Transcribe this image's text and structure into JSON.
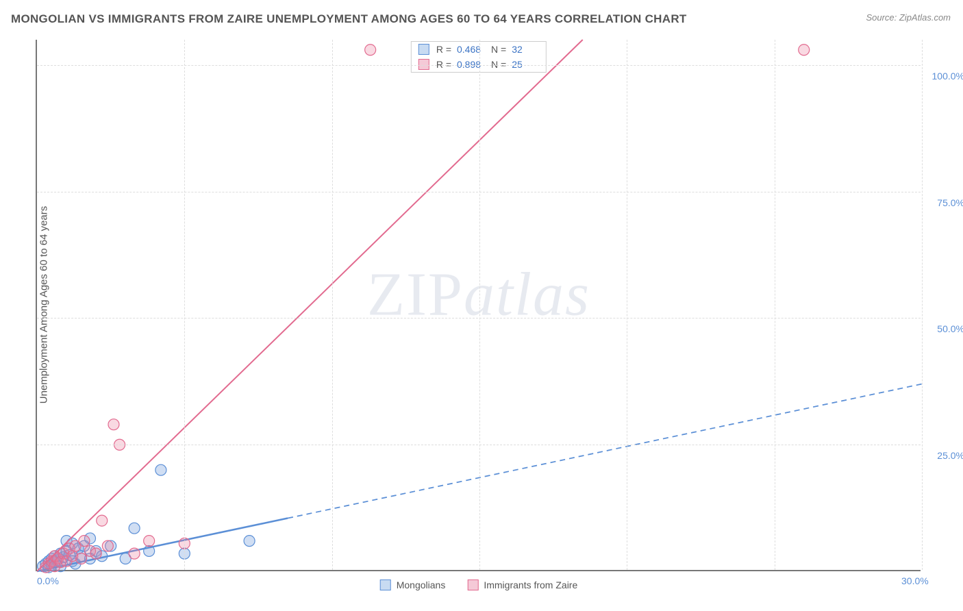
{
  "title": "MONGOLIAN VS IMMIGRANTS FROM ZAIRE UNEMPLOYMENT AMONG AGES 60 TO 64 YEARS CORRELATION CHART",
  "source": "Source: ZipAtlas.com",
  "ylabel": "Unemployment Among Ages 60 to 64 years",
  "watermark": "ZIPatlas",
  "type": "scatter",
  "background_color": "#ffffff",
  "title_color": "#555555",
  "title_fontsize": 17,
  "label_color": "#555555",
  "label_fontsize": 15,
  "tick_color": "#5b8fd6",
  "tick_fontsize": 14,
  "grid_color": "#dddddd",
  "axis_color": "#777777",
  "xlim": [
    0,
    30
  ],
  "ylim": [
    0,
    105
  ],
  "xticks": [
    {
      "value": 0,
      "label": "0.0%"
    },
    {
      "value": 30,
      "label": "30.0%"
    }
  ],
  "yticks": [
    {
      "value": 25,
      "label": "25.0%"
    },
    {
      "value": 50,
      "label": "50.0%"
    },
    {
      "value": 75,
      "label": "75.0%"
    },
    {
      "value": 100,
      "label": "100.0%"
    }
  ],
  "x_grid_positions": [
    5,
    10,
    15,
    20,
    25,
    30
  ],
  "series": [
    {
      "name": "Mongolians",
      "color_fill": "rgba(120,160,220,0.35)",
      "color_stroke": "#5b8fd6",
      "swatch_fill": "#c8dbf2",
      "swatch_border": "#5b8fd6",
      "marker_radius": 8,
      "stats": {
        "R": "0.468",
        "N": "32"
      },
      "points": [
        [
          0.2,
          1.0
        ],
        [
          0.3,
          1.5
        ],
        [
          0.4,
          2.0
        ],
        [
          0.4,
          0.8
        ],
        [
          0.5,
          1.2
        ],
        [
          0.5,
          2.5
        ],
        [
          0.6,
          1.8
        ],
        [
          0.6,
          3.0
        ],
        [
          0.7,
          2.2
        ],
        [
          0.8,
          1.0
        ],
        [
          0.8,
          3.5
        ],
        [
          0.9,
          2.8
        ],
        [
          1.0,
          4.0
        ],
        [
          1.0,
          6.0
        ],
        [
          1.1,
          3.2
        ],
        [
          1.2,
          2.0
        ],
        [
          1.2,
          5.5
        ],
        [
          1.3,
          1.5
        ],
        [
          1.4,
          4.5
        ],
        [
          1.5,
          3.0
        ],
        [
          1.6,
          5.0
        ],
        [
          1.8,
          2.5
        ],
        [
          1.8,
          6.5
        ],
        [
          2.0,
          4.0
        ],
        [
          2.2,
          3.0
        ],
        [
          2.5,
          5.0
        ],
        [
          3.0,
          2.5
        ],
        [
          3.3,
          8.5
        ],
        [
          3.8,
          4.0
        ],
        [
          4.2,
          20.0
        ],
        [
          5.0,
          3.5
        ],
        [
          7.2,
          6.0
        ]
      ],
      "trend": {
        "x1": 0,
        "y1": 0,
        "x2": 30,
        "y2": 37,
        "solid_until_x": 8.5,
        "stroke_width": 2.5
      }
    },
    {
      "name": "Immigrants from Zaire",
      "color_fill": "rgba(235,130,160,0.30)",
      "color_stroke": "#e26a8f",
      "swatch_fill": "#f5c9d7",
      "swatch_border": "#e26a8f",
      "marker_radius": 8,
      "stats": {
        "R": "0.898",
        "N": "25"
      },
      "points": [
        [
          0.3,
          0.8
        ],
        [
          0.4,
          1.5
        ],
        [
          0.5,
          2.0
        ],
        [
          0.6,
          1.0
        ],
        [
          0.6,
          3.0
        ],
        [
          0.7,
          2.5
        ],
        [
          0.8,
          1.8
        ],
        [
          0.9,
          3.5
        ],
        [
          1.0,
          2.0
        ],
        [
          1.1,
          4.5
        ],
        [
          1.2,
          3.0
        ],
        [
          1.3,
          5.0
        ],
        [
          1.5,
          2.5
        ],
        [
          1.6,
          6.0
        ],
        [
          1.8,
          4.0
        ],
        [
          2.0,
          3.5
        ],
        [
          2.2,
          10.0
        ],
        [
          2.4,
          5.0
        ],
        [
          2.6,
          29.0
        ],
        [
          2.8,
          25.0
        ],
        [
          3.3,
          3.5
        ],
        [
          3.8,
          6.0
        ],
        [
          5.0,
          5.5
        ],
        [
          11.3,
          103.0
        ],
        [
          26.0,
          103.0
        ]
      ],
      "trend": {
        "x1": 0,
        "y1": 0,
        "x2": 18.5,
        "y2": 105,
        "solid_until_x": 18.5,
        "stroke_width": 2.0
      }
    }
  ],
  "legend_bottom": [
    {
      "label": "Mongolians",
      "fill": "#c8dbf2",
      "border": "#5b8fd6"
    },
    {
      "label": "Immigrants from Zaire",
      "fill": "#f5c9d7",
      "border": "#e26a8f"
    }
  ]
}
